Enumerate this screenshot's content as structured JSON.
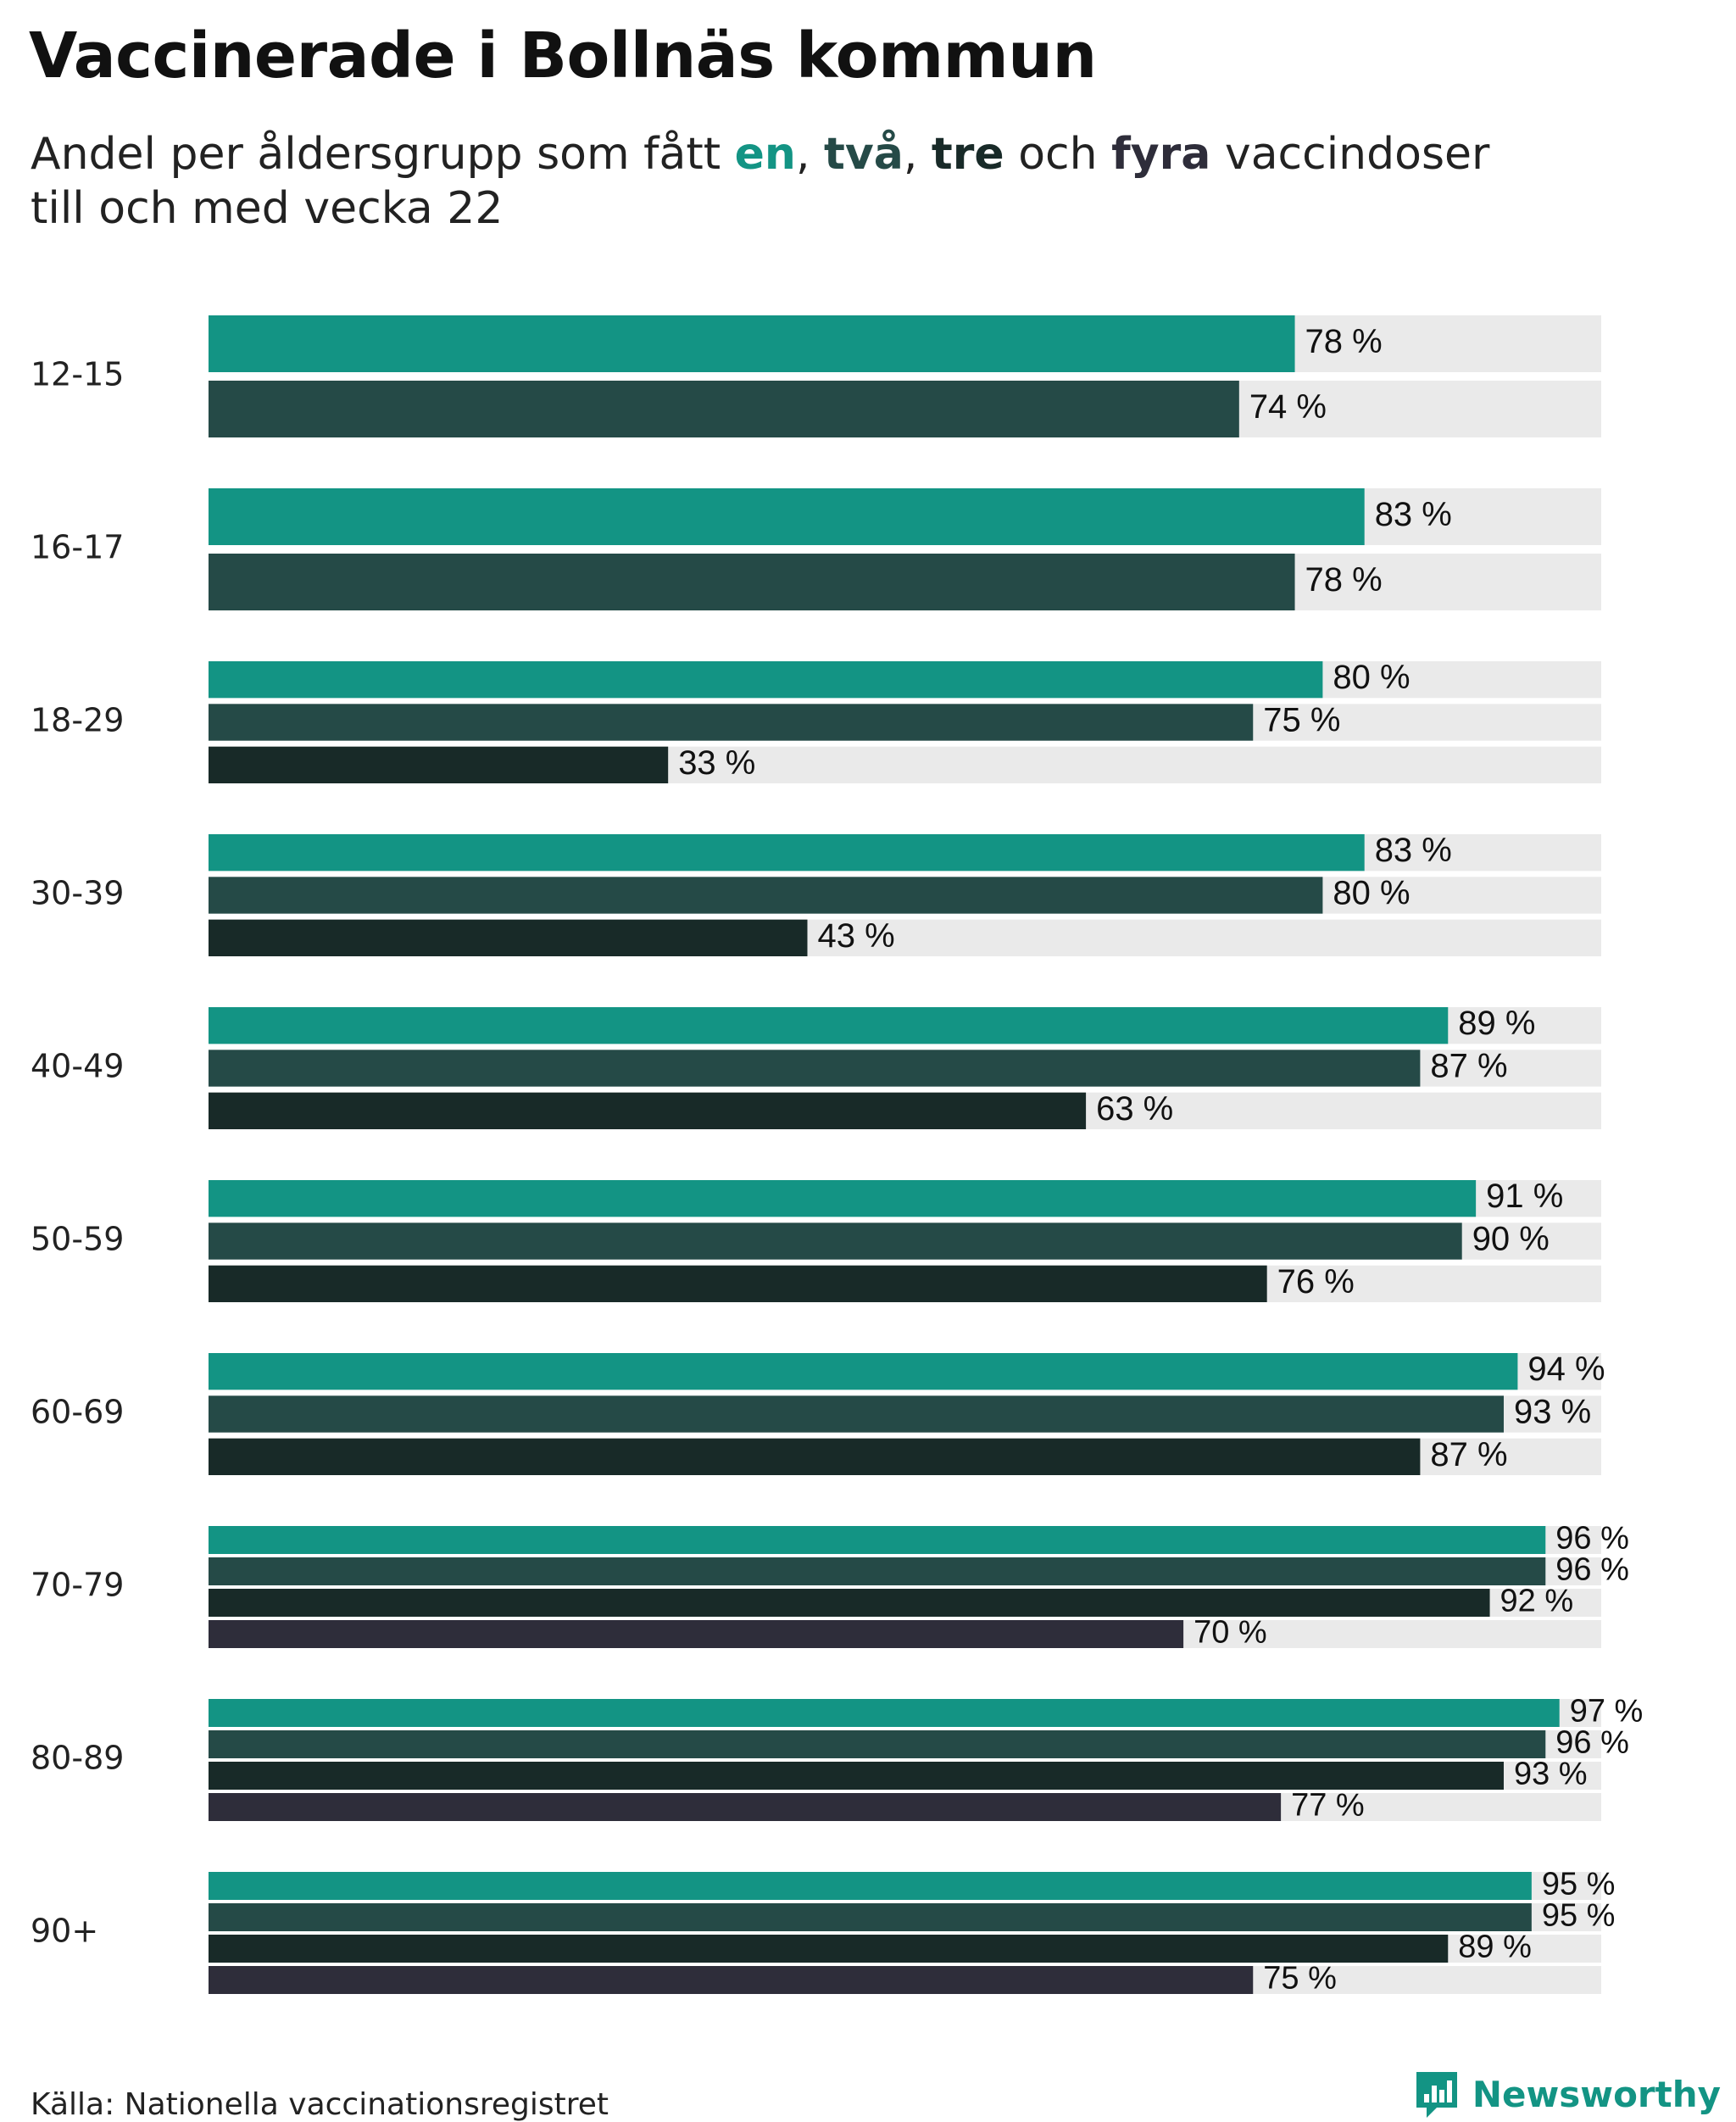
{
  "title": "Vaccinerade i Bollnäs kommun",
  "subtitle": {
    "prefix": "Andel per åldersgrupp som fått ",
    "dose1": "en",
    "sep1": ", ",
    "dose2": "två",
    "sep2": ", ",
    "dose3": "tre",
    "conj": " och ",
    "dose4": "fyra",
    "suffix": " vaccindoser",
    "line2": "till och med vecka 22"
  },
  "colors": {
    "dose1": "#139484",
    "dose2": "#254a47",
    "dose3": "#182a28",
    "dose4": "#2e2d3a",
    "track": "#eaeaea",
    "logo": "#139484"
  },
  "chart_data": {
    "type": "bar",
    "orientation": "horizontal",
    "title": "Vaccinerade i Bollnäs kommun",
    "subtitle": "Andel per åldersgrupp som fått en, två, tre och fyra vaccindoser till och med vecka 22",
    "xlim": [
      0,
      100
    ],
    "unit": " %",
    "categories": [
      "12-15",
      "16-17",
      "18-29",
      "30-39",
      "40-49",
      "50-59",
      "60-69",
      "70-79",
      "80-89",
      "90+"
    ],
    "series": [
      {
        "name": "en",
        "values": [
          78,
          83,
          80,
          83,
          89,
          91,
          94,
          96,
          97,
          95
        ]
      },
      {
        "name": "två",
        "values": [
          74,
          78,
          75,
          80,
          87,
          90,
          93,
          96,
          96,
          95
        ]
      },
      {
        "name": "tre",
        "values": [
          null,
          null,
          33,
          43,
          63,
          76,
          87,
          92,
          93,
          89
        ]
      },
      {
        "name": "fyra",
        "values": [
          null,
          null,
          null,
          null,
          null,
          null,
          null,
          70,
          77,
          75
        ]
      }
    ]
  },
  "source": "Källa: Nationella vaccinationsregistret",
  "brand": "Newsworthy"
}
